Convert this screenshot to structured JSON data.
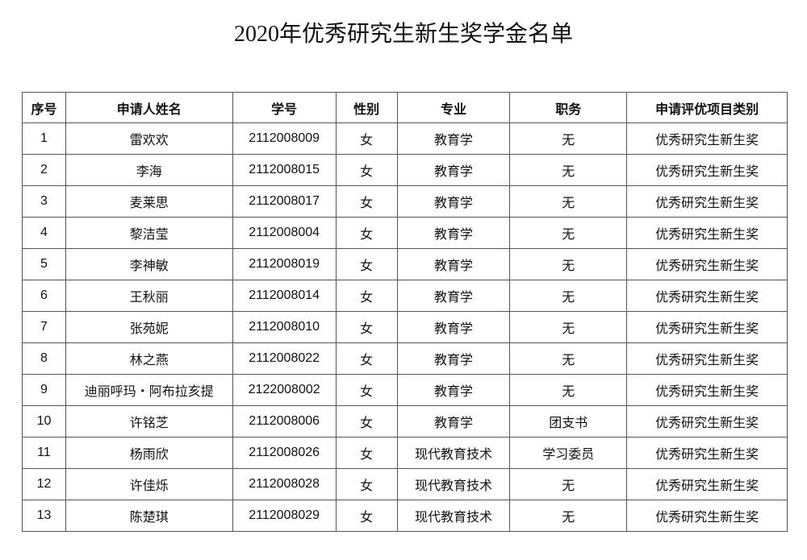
{
  "title": "2020年优秀研究生新生奖学金名单",
  "headers": [
    "序号",
    "申请人姓名",
    "学号",
    "性别",
    "专业",
    "职务",
    "申请评优项目类别"
  ],
  "rows": [
    [
      "1",
      "雷欢欢",
      "2112008009",
      "女",
      "教育学",
      "无",
      "优秀研究生新生奖"
    ],
    [
      "2",
      "李海",
      "2112008015",
      "女",
      "教育学",
      "无",
      "优秀研究生新生奖"
    ],
    [
      "3",
      "麦莱思",
      "2112008017",
      "女",
      "教育学",
      "无",
      "优秀研究生新生奖"
    ],
    [
      "4",
      "黎洁莹",
      "2112008004",
      "女",
      "教育学",
      "无",
      "优秀研究生新生奖"
    ],
    [
      "5",
      "李神敏",
      "2112008019",
      "女",
      "教育学",
      "无",
      "优秀研究生新生奖"
    ],
    [
      "6",
      "王秋丽",
      "2112008014",
      "女",
      "教育学",
      "无",
      "优秀研究生新生奖"
    ],
    [
      "7",
      "张苑妮",
      "2112008010",
      "女",
      "教育学",
      "无",
      "优秀研究生新生奖"
    ],
    [
      "8",
      "林之燕",
      "2112008022",
      "女",
      "教育学",
      "无",
      "优秀研究生新生奖"
    ],
    [
      "9",
      "迪丽呼玛・阿布拉亥提",
      "2122008002",
      "女",
      "教育学",
      "无",
      "优秀研究生新生奖"
    ],
    [
      "10",
      "许铭芝",
      "2112008006",
      "女",
      "教育学",
      "团支书",
      "优秀研究生新生奖"
    ],
    [
      "11",
      "杨雨欣",
      "2112008026",
      "女",
      "现代教育技术",
      "学习委员",
      "优秀研究生新生奖"
    ],
    [
      "12",
      "许佳烁",
      "2112008028",
      "女",
      "现代教育技术",
      "无",
      "优秀研究生新生奖"
    ],
    [
      "13",
      "陈楚琪",
      "2112008029",
      "女",
      "现代教育技术",
      "无",
      "优秀研究生新生奖"
    ]
  ]
}
